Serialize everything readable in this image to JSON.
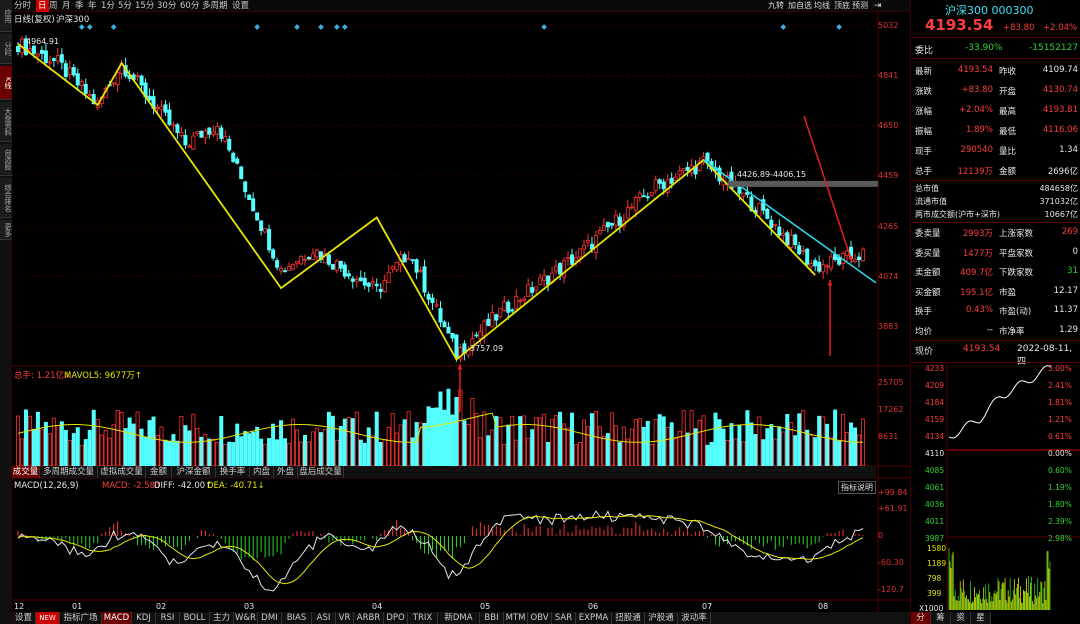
{
  "left_bar": [
    "应用",
    "分时",
    "K线",
    "大盘资料",
    "自选股",
    "综合排名",
    "更多"
  ],
  "toolbar": {
    "periods": [
      "分时",
      "日",
      "周",
      "月",
      "季",
      "年",
      "1分",
      "5分",
      "15分",
      "30分",
      "60分",
      "多周期",
      "设置"
    ],
    "active_period": "日",
    "right_tools": [
      "九转",
      "加自选",
      "均线",
      "顶底",
      "预测"
    ]
  },
  "chart": {
    "title": "日线(复权)",
    "name": "沪深300",
    "high_label": "4964.91",
    "low_label": "3757.09",
    "range_label": "4426.89-4406.15",
    "price_axis": [
      "5032",
      "4841",
      "4650",
      "4459",
      "4265",
      "4074",
      "3883"
    ],
    "volume": {
      "label_total": "总手: 1.21亿↓",
      "label_ma": "MAVOL5: 9677万↑",
      "axis": [
        "25705",
        "17262",
        "8631"
      ]
    },
    "sub_tabs": [
      "成交量",
      "多周期成交量",
      "虚拟成交量",
      "金额",
      "沪深金额",
      "换手率",
      "内盘",
      "外盘",
      "盘后成交量"
    ],
    "macd": {
      "name": "MACD(12,26,9)",
      "macd_label": "MACD: -2.58↑",
      "diff_label": "DIFF: -42.00↑",
      "dea_label": "DEA: -40.71↓",
      "axis": [
        "+99.84",
        "+61.91",
        "0",
        "-60.30",
        "-120.7"
      ],
      "help_button": "指标说明"
    },
    "x_axis": [
      "12",
      "01",
      "02",
      "03",
      "04",
      "05",
      "06",
      "07",
      "08"
    ],
    "indicator_tabs": [
      "设置",
      "NEW",
      "指标广场",
      "MACD",
      "KDJ",
      "RSI",
      "BOLL",
      "主力",
      "W&R",
      "DMI",
      "BIAS",
      "ASI",
      "VR",
      "ARBR",
      "DPO",
      "TRIX",
      "新DMA",
      "BBI",
      "MTM",
      "OBV",
      "SAR",
      "EXPMA",
      "扭股通",
      "沪股通",
      "波动率"
    ],
    "active_indicator": "MACD",
    "colors": {
      "up": "#ff3232",
      "down": "#54ffff",
      "wave": "#e6e600",
      "trend": "#2ad4e6",
      "arrow": "#e61e1e"
    }
  },
  "quote": {
    "title": "沪深300 000300",
    "price": "4193.54",
    "change": "+83.80",
    "change_pct": "+2.04%",
    "weibi_label": "委比",
    "weibi_pct": "-33.90%",
    "weibi_val": "-15152127",
    "rows": [
      [
        "最新",
        "4193.54",
        "昨收",
        "4109.74"
      ],
      [
        "涨跌",
        "+83.80",
        "开盘",
        "4130.74"
      ],
      [
        "涨幅",
        "+2.04%",
        "最高",
        "4193.81"
      ],
      [
        "振幅",
        "1.89%",
        "最低",
        "4116.06"
      ],
      [
        "现手",
        "290540",
        "量比",
        "1.34"
      ],
      [
        "总手",
        "12139万",
        "金额",
        "2696亿"
      ]
    ],
    "market": [
      [
        "总市值",
        "484658亿"
      ],
      [
        "流通市值",
        "371032亿"
      ],
      [
        "两市成交额(沪市+深市)",
        "10667亿"
      ]
    ],
    "orders": [
      [
        "委卖量",
        "2993万",
        "上涨家数",
        "269"
      ],
      [
        "委买量",
        "1477万",
        "平盘家数",
        "0"
      ],
      [
        "卖金额",
        "409.7亿",
        "下跌家数",
        "31"
      ],
      [
        "买金额",
        "195.1亿",
        "市盈",
        "12.17"
      ],
      [
        "换手",
        "0.43%",
        "市盈(动)",
        "11.37"
      ],
      [
        "均价",
        "--",
        "市净率",
        "1.29"
      ]
    ],
    "now_label": "现价",
    "now_price": "4193.54",
    "now_date": "2022-08-11,四",
    "mini_axis_left": [
      "4233",
      "4209",
      "4184",
      "4159",
      "4134",
      "4110",
      "4085",
      "4061",
      "4036",
      "4011",
      "3987"
    ],
    "mini_axis_right": [
      "3.00%",
      "2.41%",
      "1.81%",
      "1.21%",
      "0.61%",
      "0.00%",
      "0.60%",
      "1.19%",
      "1.80%",
      "2.39%",
      "2.98%"
    ],
    "mini_vol_axis": [
      "1580",
      "1189",
      "798",
      "399",
      "X1000"
    ],
    "bottom_tabs": [
      "分",
      "筹",
      "资",
      "星"
    ]
  }
}
